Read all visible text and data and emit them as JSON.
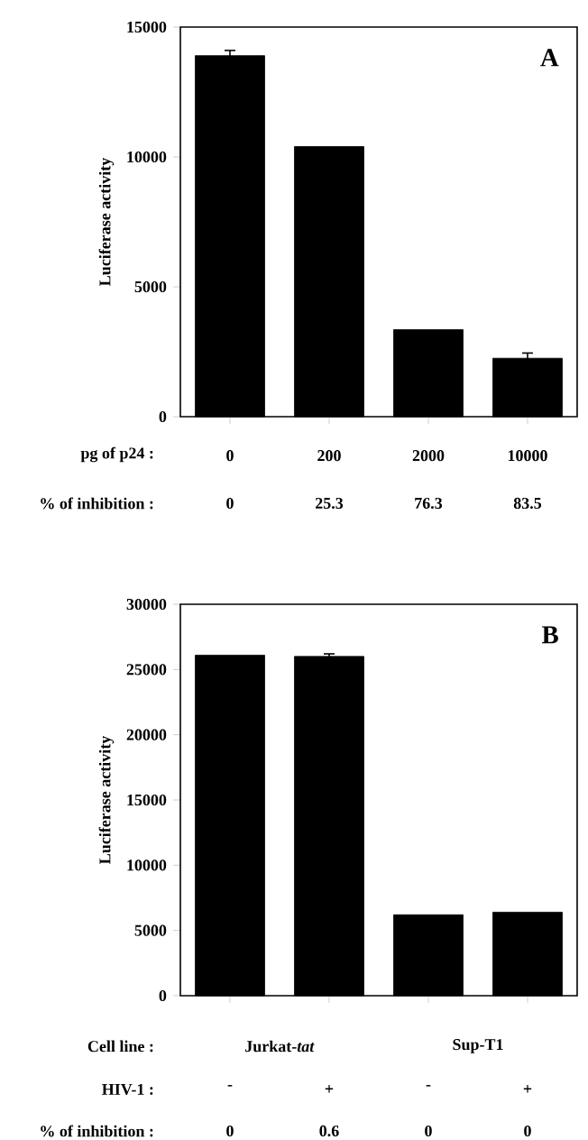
{
  "chart_data": [
    {
      "type": "bar",
      "title": "A",
      "ylabel": "Luciferase activity",
      "xlabel": "pg of p24 :",
      "categories": [
        "0",
        "200",
        "2000",
        "10000"
      ],
      "values": [
        13900,
        10400,
        3350,
        2250
      ],
      "errors": [
        200,
        null,
        null,
        200
      ],
      "color": "#000000",
      "ylim": [
        0,
        15000
      ],
      "yticks": [
        0,
        5000,
        10000,
        15000
      ],
      "annotations": [
        "% of inhibition :",
        "0",
        "25.3",
        "76.3",
        "83.5"
      ]
    },
    {
      "type": "bar",
      "title": "B",
      "ylabel": "Luciferase activity",
      "xlabel": "HIV-1 :",
      "categories": [
        "-",
        "+",
        "-",
        "+"
      ],
      "values": [
        26100,
        26000,
        6200,
        6400
      ],
      "errors": [
        null,
        200,
        null,
        null
      ],
      "color": "#000000",
      "ylim": [
        0,
        30000
      ],
      "yticks": [
        0,
        5000,
        10000,
        15000,
        20000,
        25000,
        30000
      ],
      "annotations": [
        "Cell line :",
        "Jurkat-*tat*",
        "Sup-T1",
        "% of inhibition :",
        "0",
        "0.6",
        "0",
        "0"
      ]
    }
  ]
}
